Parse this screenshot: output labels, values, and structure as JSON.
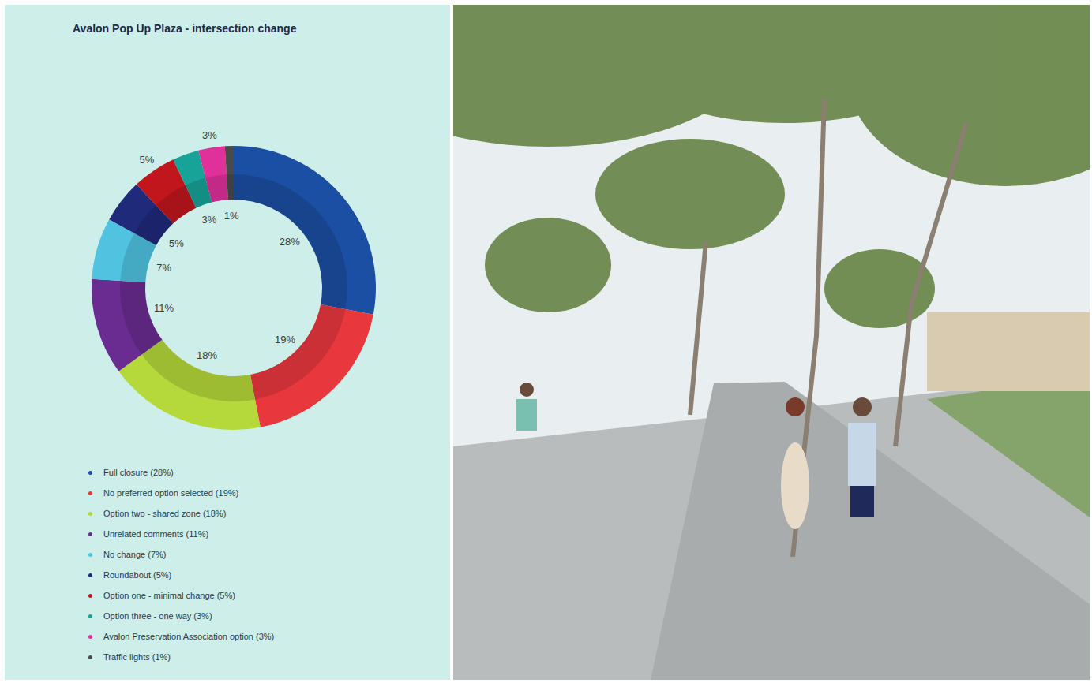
{
  "chart_data": {
    "type": "pie",
    "title": "Avalon Pop Up Plaza - intersection change",
    "categories": [
      "Full closure (28%)",
      "No preferred option selected (19%)",
      "Option two - shared zone (18%)",
      "Unrelated comments (11%)",
      "No change (7%)",
      "Roundabout (5%)",
      "Option one - minimal change (5%)",
      "Option three - one way (3%)",
      "Avalon Preservation Association option (3%)",
      "Traffic lights (1%)"
    ],
    "values": [
      28,
      19,
      18,
      11,
      7,
      5,
      5,
      3,
      3,
      1
    ],
    "value_labels": [
      "28%",
      "19%",
      "18%",
      "11%",
      "7%",
      "5%",
      "5%",
      "3%",
      "3%",
      "1%"
    ],
    "colors": [
      "#1b4fa3",
      "#e8383d",
      "#b5d83a",
      "#6a2c91",
      "#4fc3e0",
      "#1f2a7a",
      "#c0161c",
      "#17a398",
      "#e0309a",
      "#4a4a4a"
    ],
    "data_labels": true,
    "legend": "bottom"
  }
}
